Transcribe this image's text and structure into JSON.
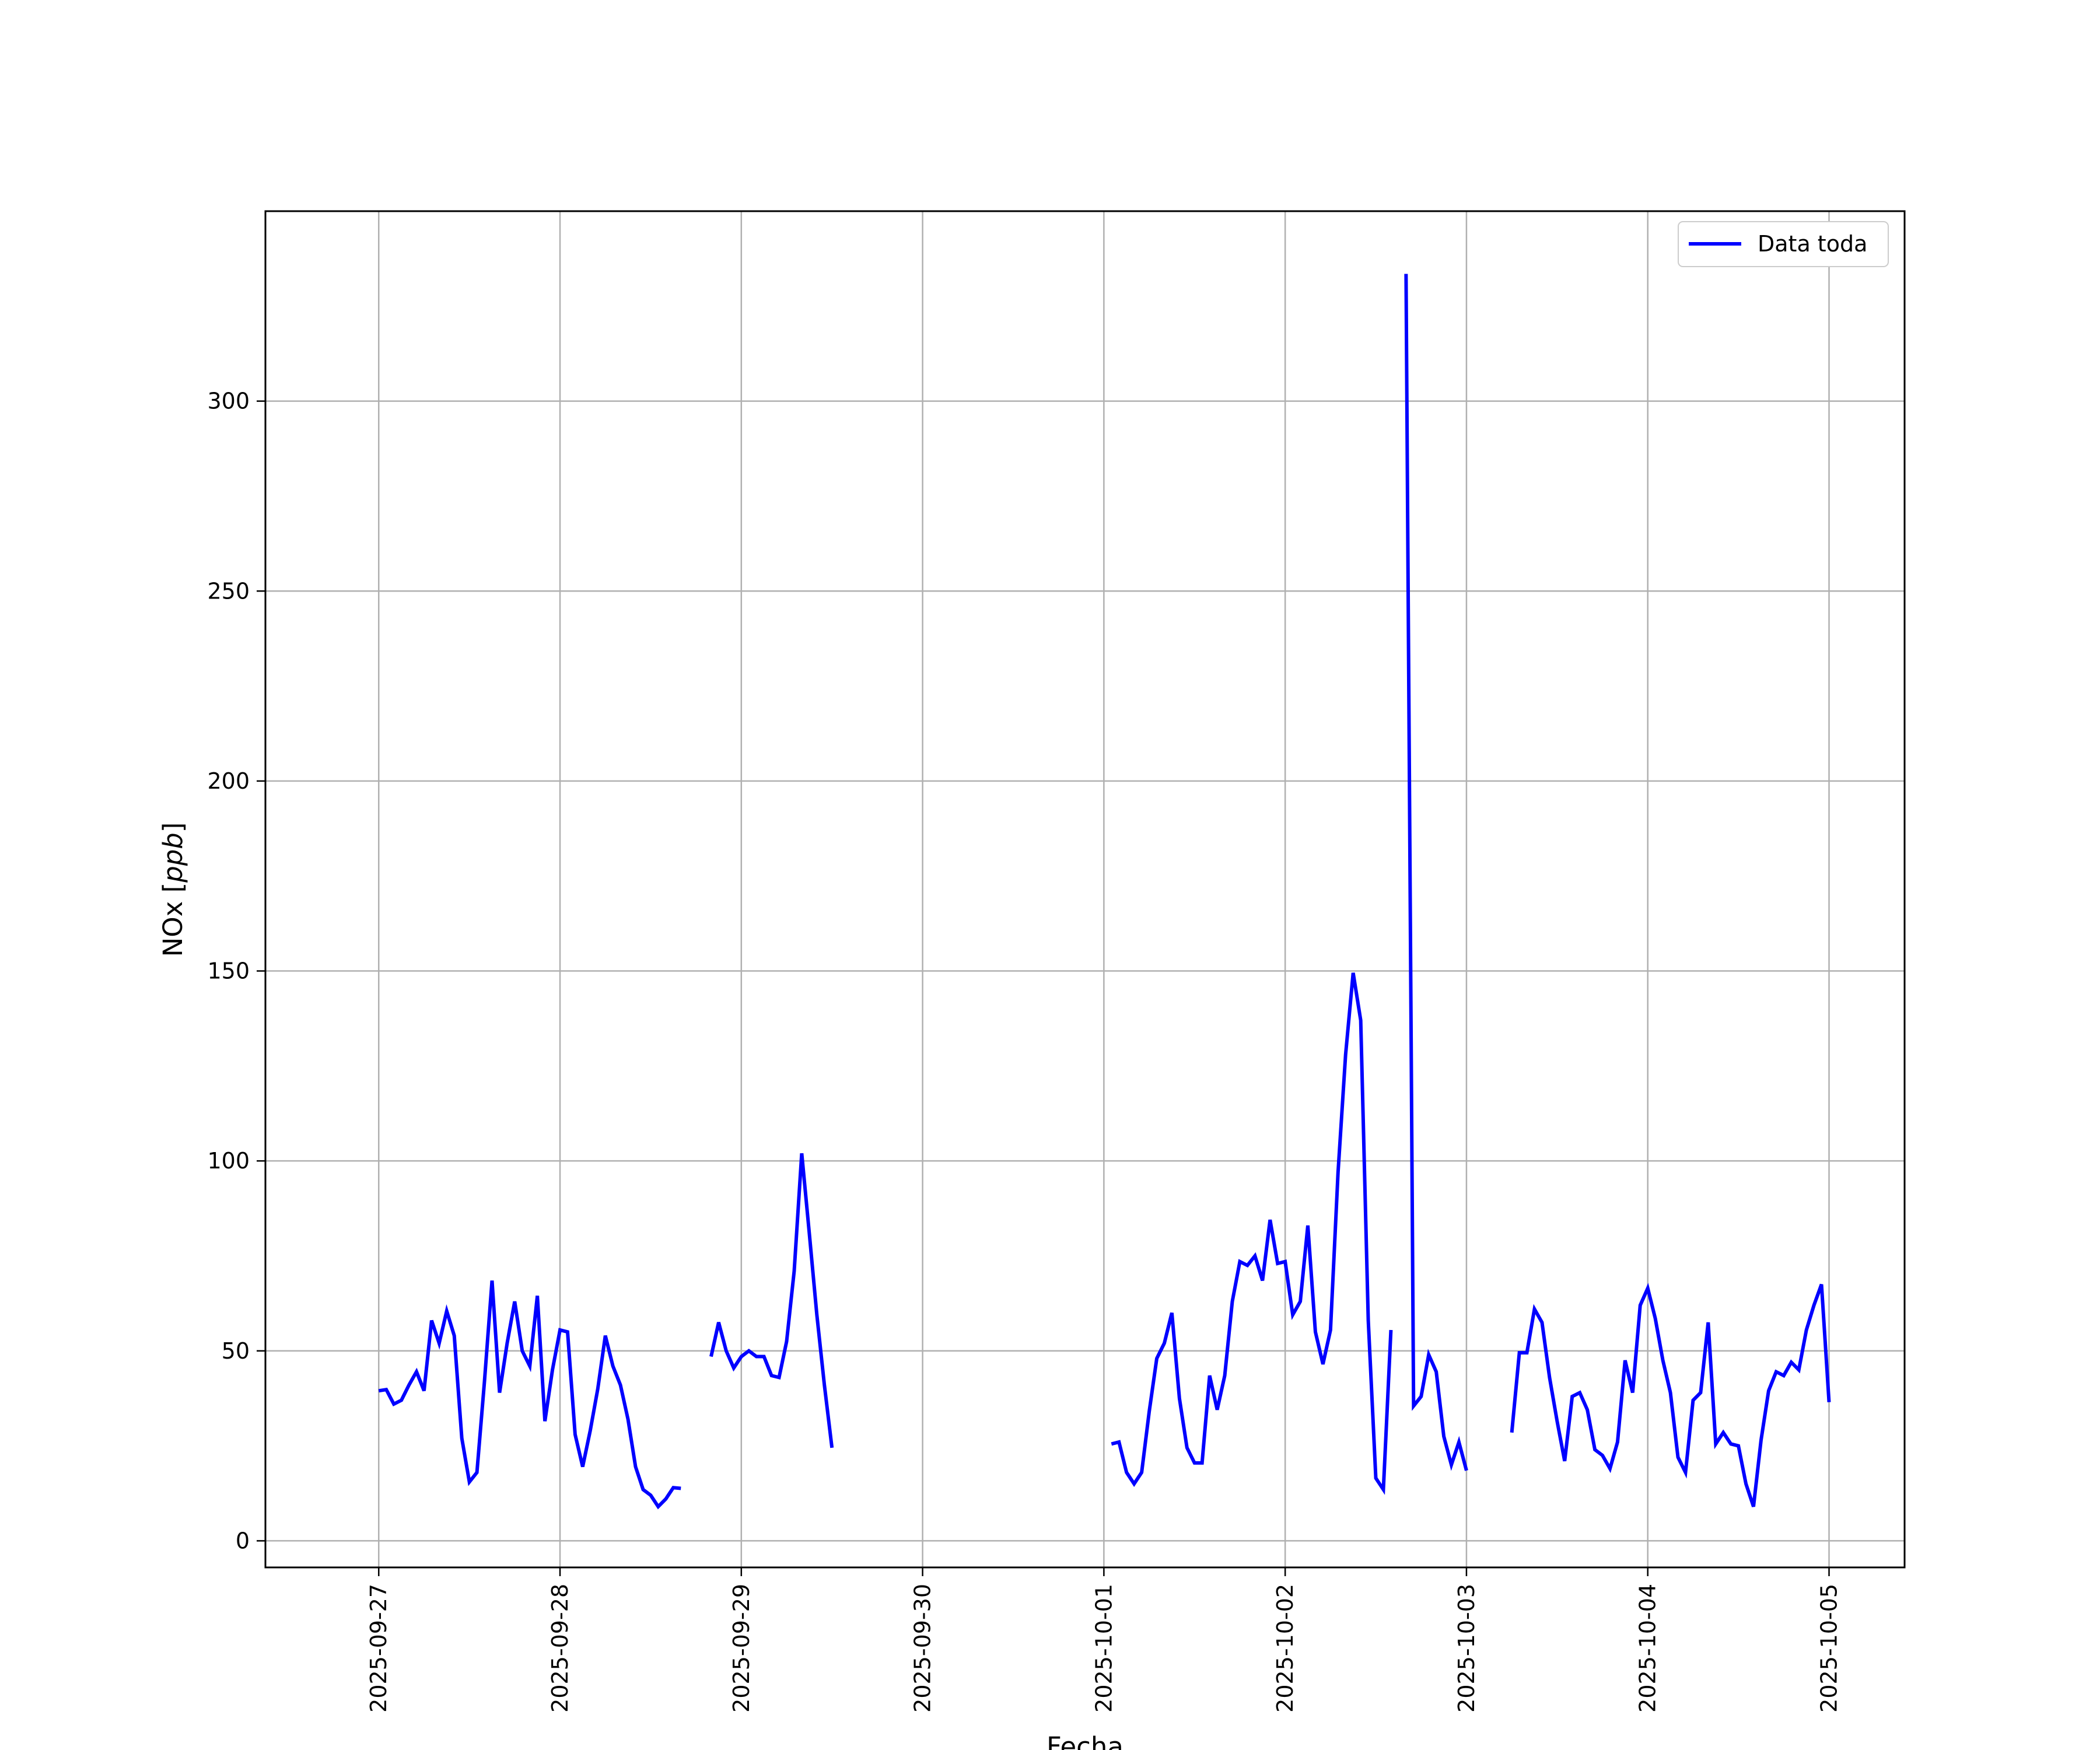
{
  "chart_data": {
    "type": "line",
    "title": "",
    "xlabel": "Fecha",
    "ylabel_prefix": "NOx [",
    "ylabel_unit": "ppb",
    "ylabel_suffix": "]",
    "x_ticks": [
      "2025-09-27",
      "2025-09-28",
      "2025-09-29",
      "2025-09-30",
      "2025-10-01",
      "2025-10-02",
      "2025-10-03",
      "2025-10-04",
      "2025-10-05"
    ],
    "y_ticks": [
      0,
      50,
      100,
      150,
      200,
      250,
      300
    ],
    "xlim": [
      "2025-09-26 09:00",
      "2025-10-05 10:00"
    ],
    "ylim": [
      -7,
      350
    ],
    "grid": true,
    "legend_position": "top-right",
    "color": "#0000ff",
    "series": [
      {
        "name": "Data toda",
        "points": [
          [
            "2025-09-27 00:00",
            39.5
          ],
          [
            "2025-09-27 01:00",
            39.8
          ],
          [
            "2025-09-27 02:00",
            36.0
          ],
          [
            "2025-09-27 03:00",
            37.0
          ],
          [
            "2025-09-27 04:00",
            41.0
          ],
          [
            "2025-09-27 05:00",
            44.5
          ],
          [
            "2025-09-27 06:00",
            39.5
          ],
          [
            "2025-09-27 07:00",
            58.0
          ],
          [
            "2025-09-27 08:00",
            52.0
          ],
          [
            "2025-09-27 09:00",
            60.5
          ],
          [
            "2025-09-27 10:00",
            54.0
          ],
          [
            "2025-09-27 11:00",
            27.0
          ],
          [
            "2025-09-27 12:00",
            15.5
          ],
          [
            "2025-09-27 13:00",
            18.0
          ],
          [
            "2025-09-27 14:00",
            42.0
          ],
          [
            "2025-09-27 15:00",
            68.5
          ],
          [
            "2025-09-27 16:00",
            39.0
          ],
          [
            "2025-09-27 17:00",
            52.0
          ],
          [
            "2025-09-27 18:00",
            63.0
          ],
          [
            "2025-09-27 19:00",
            50.0
          ],
          [
            "2025-09-27 20:00",
            46.0
          ],
          [
            "2025-09-27 21:00",
            64.5
          ],
          [
            "2025-09-27 22:00",
            31.5
          ],
          [
            "2025-09-27 23:00",
            45.0
          ],
          [
            "2025-09-28 00:00",
            55.5
          ],
          [
            "2025-09-28 01:00",
            55.0
          ],
          [
            "2025-09-28 02:00",
            28.0
          ],
          [
            "2025-09-28 03:00",
            19.5
          ],
          [
            "2025-09-28 04:00",
            29.0
          ],
          [
            "2025-09-28 05:00",
            40.0
          ],
          [
            "2025-09-28 06:00",
            54.0
          ],
          [
            "2025-09-28 07:00",
            46.0
          ],
          [
            "2025-09-28 08:00",
            41.0
          ],
          [
            "2025-09-28 09:00",
            32.0
          ],
          [
            "2025-09-28 10:00",
            19.5
          ],
          [
            "2025-09-28 11:00",
            13.5
          ],
          [
            "2025-09-28 12:00",
            12.0
          ],
          [
            "2025-09-28 13:00",
            9.0
          ],
          [
            "2025-09-28 14:00",
            11.0
          ],
          [
            "2025-09-28 15:00",
            14.0
          ],
          [
            "2025-09-28 16:00",
            13.8
          ],
          null,
          [
            "2025-09-28 20:00",
            48.5
          ],
          [
            "2025-09-28 21:00",
            57.5
          ],
          [
            "2025-09-28 22:00",
            50.0
          ],
          [
            "2025-09-28 23:00",
            45.5
          ],
          [
            "2025-09-29 00:00",
            48.5
          ],
          [
            "2025-09-29 01:00",
            50.0
          ],
          [
            "2025-09-29 02:00",
            48.5
          ],
          [
            "2025-09-29 03:00",
            48.5
          ],
          [
            "2025-09-29 04:00",
            43.5
          ],
          [
            "2025-09-29 05:00",
            43.0
          ],
          [
            "2025-09-29 06:00",
            52.5
          ],
          [
            "2025-09-29 07:00",
            71.0
          ],
          [
            "2025-09-29 08:00",
            102.0
          ],
          [
            "2025-09-29 09:00",
            81.0
          ],
          [
            "2025-09-29 10:00",
            59.5
          ],
          [
            "2025-09-29 11:00",
            41.0
          ],
          [
            "2025-09-29 12:00",
            24.5
          ],
          null,
          [
            "2025-10-01 01:00",
            25.5
          ],
          [
            "2025-10-01 02:00",
            26.0
          ],
          [
            "2025-10-01 03:00",
            18.0
          ],
          [
            "2025-10-01 04:00",
            15.0
          ],
          [
            "2025-10-01 05:00",
            18.0
          ],
          [
            "2025-10-01 06:00",
            34.0
          ],
          [
            "2025-10-01 07:00",
            48.0
          ],
          [
            "2025-10-01 08:00",
            52.0
          ],
          [
            "2025-10-01 09:00",
            60.0
          ],
          [
            "2025-10-01 10:00",
            37.5
          ],
          [
            "2025-10-01 11:00",
            24.5
          ],
          [
            "2025-10-01 12:00",
            20.5
          ],
          [
            "2025-10-01 13:00",
            20.5
          ],
          [
            "2025-10-01 14:00",
            43.5
          ],
          [
            "2025-10-01 15:00",
            34.5
          ],
          [
            "2025-10-01 16:00",
            43.5
          ],
          [
            "2025-10-01 17:00",
            63.0
          ],
          [
            "2025-10-01 18:00",
            73.5
          ],
          [
            "2025-10-01 19:00",
            72.5
          ],
          [
            "2025-10-01 20:00",
            75.0
          ],
          [
            "2025-10-01 21:00",
            68.5
          ],
          [
            "2025-10-01 22:00",
            84.5
          ],
          [
            "2025-10-01 23:00",
            73.0
          ],
          [
            "2025-10-02 00:00",
            73.5
          ],
          [
            "2025-10-02 01:00",
            59.5
          ],
          [
            "2025-10-02 02:00",
            63.0
          ],
          [
            "2025-10-02 03:00",
            83.0
          ],
          [
            "2025-10-02 04:00",
            55.0
          ],
          [
            "2025-10-02 05:00",
            46.5
          ],
          [
            "2025-10-02 06:00",
            55.5
          ],
          [
            "2025-10-02 07:00",
            97.0
          ],
          [
            "2025-10-02 08:00",
            128.0
          ],
          [
            "2025-10-02 09:00",
            149.5
          ],
          [
            "2025-10-02 10:00",
            137.0
          ],
          [
            "2025-10-02 11:00",
            58.0
          ],
          [
            "2025-10-02 12:00",
            16.5
          ],
          [
            "2025-10-02 13:00",
            13.5
          ],
          [
            "2025-10-02 14:00",
            55.5
          ],
          null,
          [
            "2025-10-02 16:00",
            333.5
          ],
          [
            "2025-10-02 17:00",
            35.5
          ],
          [
            "2025-10-02 18:00",
            38.0
          ],
          [
            "2025-10-02 19:00",
            49.0
          ],
          [
            "2025-10-02 20:00",
            44.5
          ],
          [
            "2025-10-02 21:00",
            27.5
          ],
          [
            "2025-10-02 22:00",
            20.0
          ],
          [
            "2025-10-02 23:00",
            26.0
          ],
          [
            "2025-10-03 00:00",
            18.5
          ],
          null,
          [
            "2025-10-03 06:00",
            28.5
          ],
          [
            "2025-10-03 07:00",
            49.5
          ],
          [
            "2025-10-03 08:00",
            49.5
          ],
          [
            "2025-10-03 09:00",
            61.0
          ],
          [
            "2025-10-03 10:00",
            57.5
          ],
          [
            "2025-10-03 11:00",
            43.0
          ],
          [
            "2025-10-03 12:00",
            31.5
          ],
          [
            "2025-10-03 13:00",
            21.0
          ],
          [
            "2025-10-03 14:00",
            38.0
          ],
          [
            "2025-10-03 15:00",
            39.0
          ],
          [
            "2025-10-03 16:00",
            34.5
          ],
          [
            "2025-10-03 17:00",
            24.0
          ],
          [
            "2025-10-03 18:00",
            22.5
          ],
          [
            "2025-10-03 19:00",
            19.0
          ],
          [
            "2025-10-03 20:00",
            26.0
          ],
          [
            "2025-10-03 21:00",
            47.5
          ],
          [
            "2025-10-03 22:00",
            39.0
          ],
          [
            "2025-10-03 23:00",
            62.0
          ],
          [
            "2025-10-04 00:00",
            66.5
          ],
          [
            "2025-10-04 01:00",
            58.5
          ],
          [
            "2025-10-04 02:00",
            47.5
          ],
          [
            "2025-10-04 03:00",
            39.0
          ],
          [
            "2025-10-04 04:00",
            22.0
          ],
          [
            "2025-10-04 05:00",
            18.0
          ],
          [
            "2025-10-04 06:00",
            37.0
          ],
          [
            "2025-10-04 07:00",
            39.0
          ],
          [
            "2025-10-04 08:00",
            57.5
          ],
          [
            "2025-10-04 09:00",
            25.5
          ],
          [
            "2025-10-04 10:00",
            28.5
          ],
          [
            "2025-10-04 11:00",
            25.5
          ],
          [
            "2025-10-04 12:00",
            25.0
          ],
          [
            "2025-10-04 13:00",
            15.0
          ],
          [
            "2025-10-04 14:00",
            9.0
          ],
          [
            "2025-10-04 15:00",
            26.5
          ],
          [
            "2025-10-04 16:00",
            39.5
          ],
          [
            "2025-10-04 17:00",
            44.5
          ],
          [
            "2025-10-04 18:00",
            43.5
          ],
          [
            "2025-10-04 19:00",
            47.0
          ],
          [
            "2025-10-04 20:00",
            45.0
          ],
          [
            "2025-10-04 21:00",
            55.5
          ],
          [
            "2025-10-04 22:00",
            62.0
          ],
          [
            "2025-10-04 23:00",
            67.5
          ],
          [
            "2025-10-05 00:00",
            36.5
          ]
        ]
      }
    ]
  }
}
